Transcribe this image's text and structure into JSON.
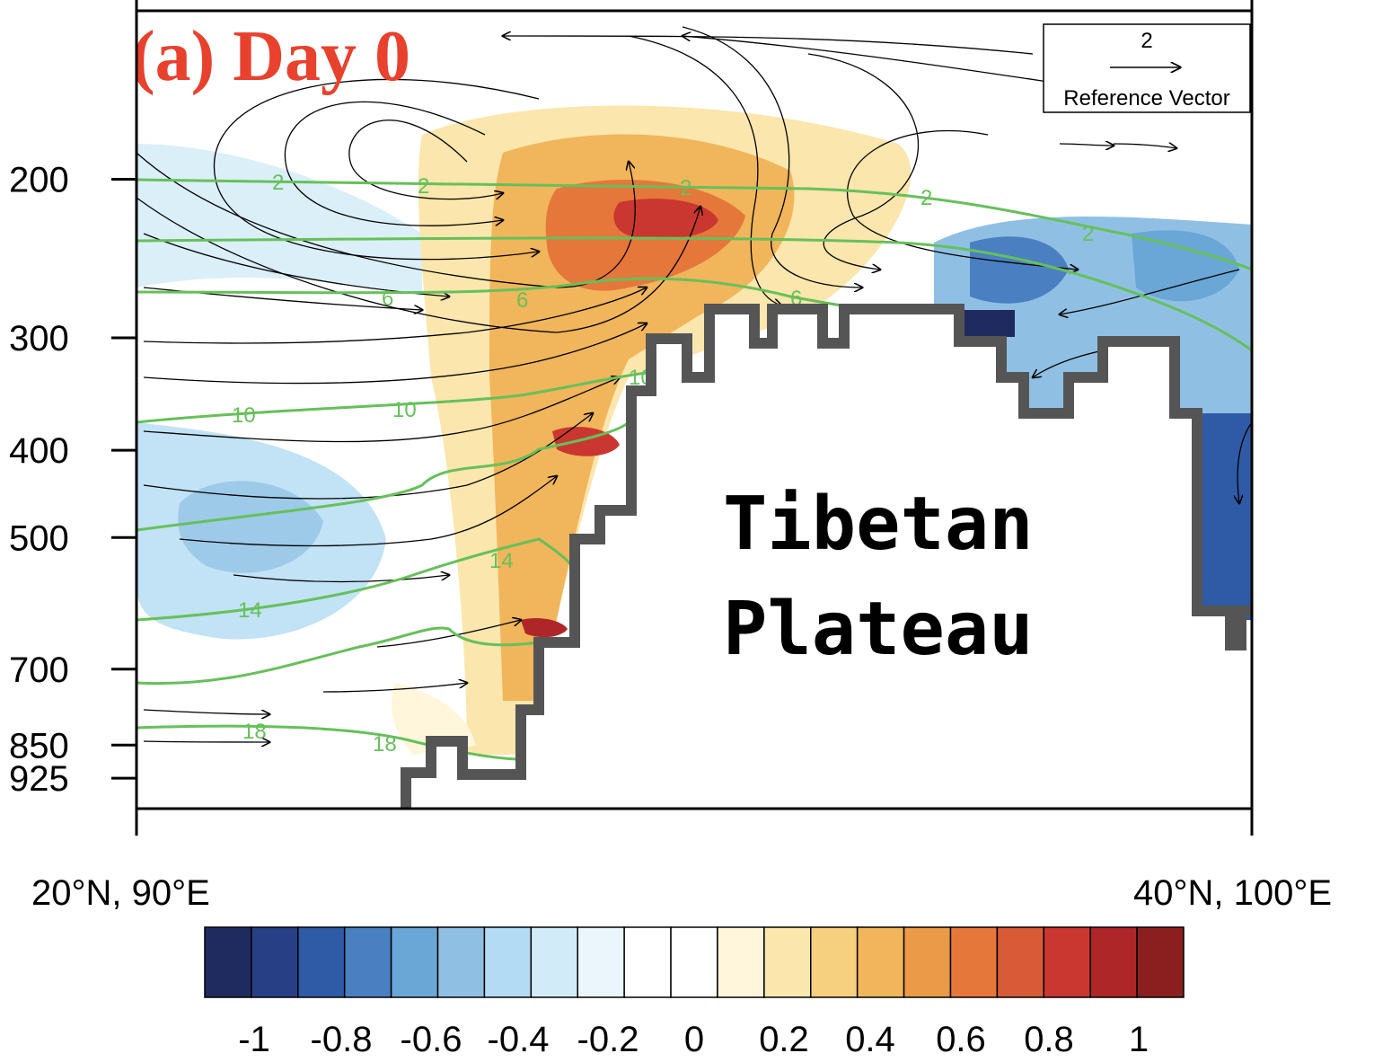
{
  "chart_data": {
    "type": "heatmap",
    "title": "(a) Day 0",
    "annotation": "Tibetan Plateau",
    "x_axis": {
      "start_label": "20°N, 90°E",
      "end_label": "40°N, 100°E"
    },
    "y_axis": {
      "ticks": [
        "200",
        "300",
        "400",
        "500",
        "700",
        "850",
        "925"
      ]
    },
    "colorbar": {
      "labels": [
        "-1",
        "-0.8",
        "-0.6",
        "-0.4",
        "-0.2",
        "0",
        "0.2",
        "0.4",
        "0.6",
        "0.8",
        "1"
      ],
      "colors": [
        "#1f2a5e",
        "#263f85",
        "#2f5aa6",
        "#4a80c1",
        "#6aa6d6",
        "#8fc0e4",
        "#b3dbf4",
        "#d2ebf8",
        "#eaf6fc",
        "#ffffff",
        "#ffffff",
        "#fff6dc",
        "#fbe6ad",
        "#f6d07e",
        "#f1b55c",
        "#eb9a47",
        "#e5773b",
        "#d85a36",
        "#c93730",
        "#ae2628",
        "#8b1f1f"
      ]
    },
    "contour_labels": [
      "2",
      "6",
      "10",
      "14",
      "18"
    ],
    "reference_vector": {
      "value": "2",
      "label": "Reference Vector"
    },
    "colors": {
      "title": "#e8412e",
      "contour": "#66c05a",
      "terrain": "#555555"
    }
  }
}
